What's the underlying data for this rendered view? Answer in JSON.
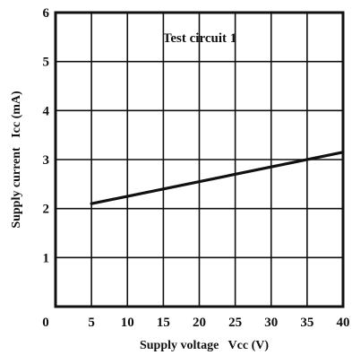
{
  "chart_data": {
    "type": "line",
    "title": "",
    "xlabel": "Supply voltage   Vcc (V)",
    "ylabel": "Supply current   Icc (mA)",
    "xlim": [
      0,
      40
    ],
    "ylim": [
      0,
      6
    ],
    "x_ticks": [
      5,
      10,
      15,
      20,
      25,
      30,
      35,
      40
    ],
    "y_ticks": [
      1,
      2,
      3,
      4,
      5,
      6
    ],
    "origin_label": "0",
    "grid": true,
    "annotation": "Test circuit 1",
    "series": [
      {
        "x": [
          5,
          40
        ],
        "y": [
          2.1,
          3.15
        ]
      }
    ],
    "colors": {
      "line": "#111111",
      "grid": "#111111",
      "background": "#ffffff"
    }
  }
}
